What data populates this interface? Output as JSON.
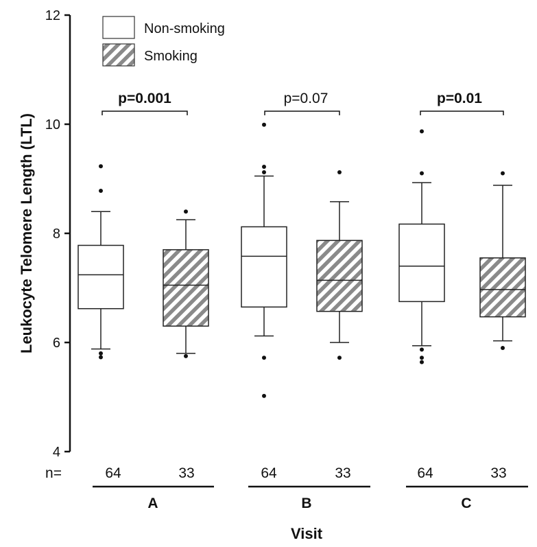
{
  "chart_data": {
    "type": "box",
    "ylabel": "Leukocyte Telomere Length (LTL)",
    "xlabel": "Visit",
    "ylim": [
      4,
      12
    ],
    "yticks": [
      4,
      6,
      8,
      10,
      12
    ],
    "grid": false,
    "legend_position": "top-left",
    "series": [
      {
        "name": "Non-smoking",
        "pattern": "open",
        "color": "#ffffff"
      },
      {
        "name": "Smoking",
        "pattern": "hatched",
        "color": "#8a8a8a"
      }
    ],
    "n_label": "n=",
    "groups": [
      {
        "label": "A",
        "p_value": "p=0.001",
        "p_bold": true,
        "boxes": [
          {
            "series": "Non-smoking",
            "n": "64",
            "whisker_low": 5.88,
            "q1": 6.62,
            "median": 7.24,
            "q3": 7.78,
            "whisker_high": 8.4,
            "outliers": [
              5.73,
              5.8,
              8.78,
              9.23
            ]
          },
          {
            "series": "Smoking",
            "n": "33",
            "whisker_low": 5.8,
            "q1": 6.3,
            "median": 7.05,
            "q3": 7.7,
            "whisker_high": 8.25,
            "outliers": [
              5.75,
              8.4
            ]
          }
        ]
      },
      {
        "label": "B",
        "p_value": "p=0.07",
        "p_bold": false,
        "boxes": [
          {
            "series": "Non-smoking",
            "n": "64",
            "whisker_low": 6.12,
            "q1": 6.65,
            "median": 7.58,
            "q3": 8.12,
            "whisker_high": 9.05,
            "outliers": [
              5.02,
              5.72,
              9.12,
              9.22,
              9.99
            ]
          },
          {
            "series": "Smoking",
            "n": "33",
            "whisker_low": 6.0,
            "q1": 6.57,
            "median": 7.14,
            "q3": 7.87,
            "whisker_high": 8.58,
            "outliers": [
              5.72,
              9.12
            ]
          }
        ]
      },
      {
        "label": "C",
        "p_value": "p=0.01",
        "p_bold": true,
        "boxes": [
          {
            "series": "Non-smoking",
            "n": "64",
            "whisker_low": 5.94,
            "q1": 6.75,
            "median": 7.4,
            "q3": 8.17,
            "whisker_high": 8.93,
            "outliers": [
              5.64,
              5.72,
              5.87,
              9.1,
              9.87
            ]
          },
          {
            "series": "Smoking",
            "n": "33",
            "whisker_low": 6.03,
            "q1": 6.47,
            "median": 6.97,
            "q3": 7.55,
            "whisker_high": 8.88,
            "outliers": [
              5.9,
              9.1
            ]
          }
        ]
      }
    ]
  }
}
